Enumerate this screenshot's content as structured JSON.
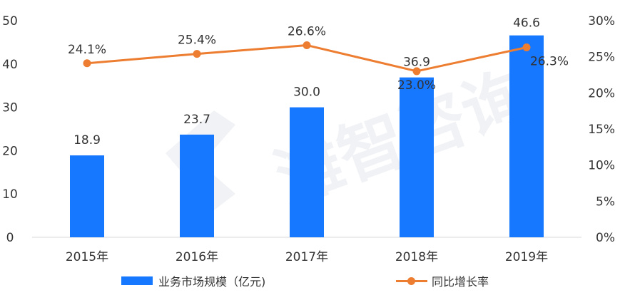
{
  "chart_data": {
    "type": "bar",
    "categories": [
      "2015年",
      "2016年",
      "2017年",
      "2018年",
      "2019年"
    ],
    "series": [
      {
        "name": "业务市场规模（亿元)",
        "type": "bar",
        "axis": "left",
        "values": [
          18.9,
          23.7,
          30.0,
          36.9,
          46.6
        ],
        "labels": [
          "18.9",
          "23.7",
          "30.0",
          "36.9",
          "46.6"
        ]
      },
      {
        "name": "同比增长率",
        "type": "line",
        "axis": "right",
        "values": [
          24.1,
          25.4,
          26.6,
          23.0,
          26.3
        ],
        "labels": [
          "24.1%",
          "25.4%",
          "26.6%",
          "23.0%",
          "26.3%"
        ]
      }
    ],
    "y_left": {
      "ylim": [
        0,
        50
      ],
      "ticks": [
        "0",
        "10",
        "20",
        "30",
        "40",
        "50"
      ]
    },
    "y_right": {
      "ylim": [
        0,
        30
      ],
      "ticks": [
        "0%",
        "5%",
        "10%",
        "15%",
        "20%",
        "25%",
        "30%"
      ]
    },
    "grid": false,
    "legend_position": "bottom",
    "colors": {
      "bar": "#1677ff",
      "line": "#ed7d31"
    }
  },
  "legend": {
    "bar_label": "业务市场规模（亿元)",
    "line_label": "同比增长率"
  },
  "watermark": "滩智咨询"
}
